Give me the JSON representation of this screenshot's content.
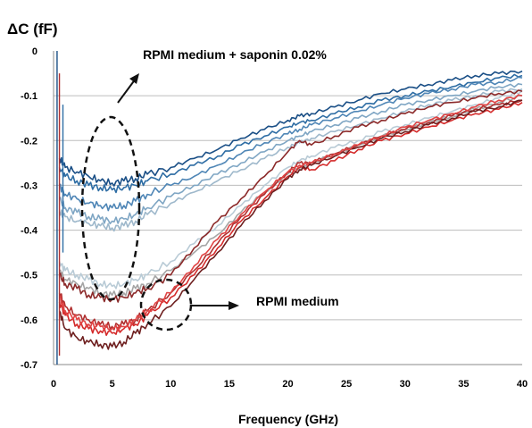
{
  "chart_data": {
    "type": "line",
    "title": "",
    "ylabel": "ΔC (fF)",
    "xlabel": "Frequency (GHz)",
    "xlim": [
      0,
      40
    ],
    "ylim": [
      -0.7,
      0
    ],
    "x_ticks": [
      "0",
      "5",
      "10",
      "15",
      "20",
      "25",
      "30",
      "35",
      "40"
    ],
    "y_ticks": [
      "0",
      "-0.1",
      "-0.2",
      "-0.3",
      "-0.4",
      "-0.5",
      "-0.6",
      "-0.7"
    ],
    "grid": "horizontal",
    "x": [
      0.5,
      1,
      2,
      3,
      4,
      5,
      6,
      7,
      8,
      10,
      12,
      14,
      16,
      18,
      20,
      21,
      22,
      24,
      26,
      28,
      30,
      32,
      34,
      36,
      38,
      40
    ],
    "series": [
      {
        "color": "#1a4f86",
        "values": [
          -0.24,
          -0.26,
          -0.27,
          -0.28,
          -0.29,
          -0.295,
          -0.29,
          -0.285,
          -0.275,
          -0.26,
          -0.24,
          -0.22,
          -0.195,
          -0.175,
          -0.155,
          -0.145,
          -0.14,
          -0.125,
          -0.11,
          -0.095,
          -0.085,
          -0.075,
          -0.065,
          -0.055,
          -0.05,
          -0.045
        ]
      },
      {
        "color": "#2e6da4",
        "values": [
          -0.26,
          -0.28,
          -0.29,
          -0.3,
          -0.305,
          -0.31,
          -0.305,
          -0.3,
          -0.29,
          -0.275,
          -0.255,
          -0.235,
          -0.21,
          -0.19,
          -0.17,
          -0.16,
          -0.155,
          -0.14,
          -0.125,
          -0.11,
          -0.1,
          -0.09,
          -0.08,
          -0.07,
          -0.06,
          -0.055
        ]
      },
      {
        "color": "#4f86b6",
        "values": [
          -0.3,
          -0.32,
          -0.33,
          -0.34,
          -0.345,
          -0.35,
          -0.345,
          -0.335,
          -0.32,
          -0.3,
          -0.28,
          -0.255,
          -0.23,
          -0.205,
          -0.185,
          -0.175,
          -0.165,
          -0.15,
          -0.135,
          -0.12,
          -0.105,
          -0.095,
          -0.085,
          -0.075,
          -0.07,
          -0.06
        ]
      },
      {
        "color": "#7fa6c4",
        "values": [
          -0.33,
          -0.35,
          -0.36,
          -0.37,
          -0.375,
          -0.38,
          -0.375,
          -0.365,
          -0.35,
          -0.325,
          -0.3,
          -0.275,
          -0.25,
          -0.225,
          -0.2,
          -0.19,
          -0.18,
          -0.165,
          -0.15,
          -0.135,
          -0.12,
          -0.11,
          -0.1,
          -0.09,
          -0.08,
          -0.075
        ]
      },
      {
        "color": "#9eb8cb",
        "values": [
          -0.36,
          -0.37,
          -0.38,
          -0.385,
          -0.39,
          -0.395,
          -0.39,
          -0.38,
          -0.365,
          -0.34,
          -0.315,
          -0.29,
          -0.265,
          -0.24,
          -0.215,
          -0.205,
          -0.195,
          -0.18,
          -0.165,
          -0.15,
          -0.135,
          -0.12,
          -0.11,
          -0.1,
          -0.09,
          -0.085
        ]
      },
      {
        "color": "#b9cbd6",
        "values": [
          -0.47,
          -0.49,
          -0.5,
          -0.51,
          -0.52,
          -0.525,
          -0.52,
          -0.51,
          -0.5,
          -0.47,
          -0.43,
          -0.39,
          -0.345,
          -0.3,
          -0.26,
          -0.245,
          -0.235,
          -0.215,
          -0.2,
          -0.18,
          -0.165,
          -0.15,
          -0.135,
          -0.12,
          -0.105,
          -0.09
        ]
      },
      {
        "color": "#a5a5a5",
        "values": [
          -0.49,
          -0.51,
          -0.52,
          -0.53,
          -0.54,
          -0.545,
          -0.54,
          -0.53,
          -0.52,
          -0.49,
          -0.45,
          -0.41,
          -0.36,
          -0.315,
          -0.275,
          -0.26,
          -0.25,
          -0.23,
          -0.21,
          -0.19,
          -0.175,
          -0.16,
          -0.145,
          -0.13,
          -0.115,
          -0.1
        ]
      },
      {
        "color": "#8c2a2a",
        "values": [
          -0.5,
          -0.52,
          -0.53,
          -0.545,
          -0.55,
          -0.555,
          -0.55,
          -0.54,
          -0.53,
          -0.5,
          -0.44,
          -0.38,
          -0.33,
          -0.28,
          -0.225,
          -0.2,
          -0.21,
          -0.19,
          -0.17,
          -0.155,
          -0.14,
          -0.125,
          -0.115,
          -0.105,
          -0.095,
          -0.09
        ]
      },
      {
        "color": "#b03030",
        "values": [
          -0.54,
          -0.57,
          -0.59,
          -0.6,
          -0.61,
          -0.615,
          -0.61,
          -0.6,
          -0.58,
          -0.54,
          -0.49,
          -0.43,
          -0.37,
          -0.32,
          -0.27,
          -0.25,
          -0.25,
          -0.23,
          -0.21,
          -0.19,
          -0.175,
          -0.16,
          -0.145,
          -0.13,
          -0.12,
          -0.11
        ]
      },
      {
        "color": "#d42a2a",
        "values": [
          -0.56,
          -0.59,
          -0.61,
          -0.62,
          -0.625,
          -0.63,
          -0.62,
          -0.61,
          -0.59,
          -0.55,
          -0.5,
          -0.44,
          -0.38,
          -0.33,
          -0.28,
          -0.26,
          -0.265,
          -0.245,
          -0.22,
          -0.2,
          -0.185,
          -0.17,
          -0.155,
          -0.14,
          -0.13,
          -0.115
        ]
      },
      {
        "color": "#6e1f1f",
        "values": [
          -0.58,
          -0.62,
          -0.64,
          -0.65,
          -0.655,
          -0.66,
          -0.65,
          -0.63,
          -0.61,
          -0.57,
          -0.51,
          -0.45,
          -0.39,
          -0.335,
          -0.285,
          -0.265,
          -0.255,
          -0.235,
          -0.215,
          -0.195,
          -0.18,
          -0.165,
          -0.15,
          -0.135,
          -0.125,
          -0.11
        ]
      },
      {
        "color": "#e04444",
        "values": [
          -0.55,
          -0.58,
          -0.6,
          -0.61,
          -0.615,
          -0.62,
          -0.615,
          -0.6,
          -0.58,
          -0.54,
          -0.48,
          -0.42,
          -0.365,
          -0.315,
          -0.27,
          -0.255,
          -0.25,
          -0.23,
          -0.21,
          -0.19,
          -0.17,
          -0.155,
          -0.14,
          -0.125,
          -0.11,
          -0.1
        ]
      }
    ],
    "annotations": {
      "upper": "RPMI medium + saponin 0.02%",
      "lower": "RPMI medium"
    }
  }
}
